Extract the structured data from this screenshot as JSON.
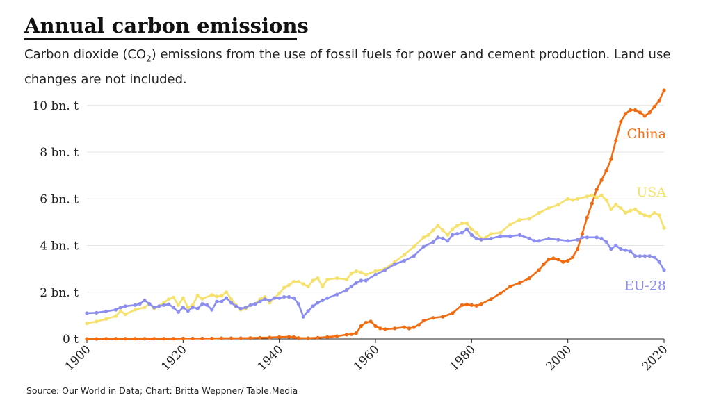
{
  "title": "Annual carbon emissions",
  "subtitle": {
    "before": "Carbon dioxide (CO",
    "sub": "2",
    "after": ") emissions from the use of fossil fuels for power and cement production. Land use changes are not included."
  },
  "source": "Source: Our World in Data; Chart: Britta Weppner/ Table.Media",
  "chart_data": {
    "type": "line",
    "xlim": [
      1900,
      2020
    ],
    "ylim": [
      0,
      10.5
    ],
    "x_ticks": [
      1900,
      1920,
      1940,
      1960,
      1980,
      2000,
      2020
    ],
    "y_ticks": [
      {
        "value": 0,
        "label": "0 t"
      },
      {
        "value": 2,
        "label": "2 bn. t"
      },
      {
        "value": 4,
        "label": "4 bn. t"
      },
      {
        "value": 6,
        "label": "6 bn. t"
      },
      {
        "value": 8,
        "label": "8 bn. t"
      },
      {
        "value": 10,
        "label": "10 bn. t"
      }
    ],
    "grid": "horizontal",
    "legend": "direct labels at line ends",
    "series": [
      {
        "name": "China",
        "color": "#f26b0f",
        "label_anchor_value": 8.8,
        "points": [
          [
            1900,
            0.0
          ],
          [
            1902,
            0.0
          ],
          [
            1904,
            0.01
          ],
          [
            1906,
            0.01
          ],
          [
            1908,
            0.01
          ],
          [
            1910,
            0.01
          ],
          [
            1912,
            0.01
          ],
          [
            1914,
            0.01
          ],
          [
            1916,
            0.01
          ],
          [
            1918,
            0.01
          ],
          [
            1920,
            0.02
          ],
          [
            1922,
            0.02
          ],
          [
            1924,
            0.02
          ],
          [
            1926,
            0.02
          ],
          [
            1928,
            0.03
          ],
          [
            1930,
            0.03
          ],
          [
            1932,
            0.03
          ],
          [
            1934,
            0.04
          ],
          [
            1936,
            0.05
          ],
          [
            1938,
            0.06
          ],
          [
            1940,
            0.08
          ],
          [
            1942,
            0.09
          ],
          [
            1943,
            0.08
          ],
          [
            1944,
            0.04
          ],
          [
            1946,
            0.03
          ],
          [
            1948,
            0.05
          ],
          [
            1950,
            0.08
          ],
          [
            1952,
            0.12
          ],
          [
            1954,
            0.18
          ],
          [
            1955,
            0.2
          ],
          [
            1956,
            0.25
          ],
          [
            1957,
            0.55
          ],
          [
            1958,
            0.7
          ],
          [
            1959,
            0.75
          ],
          [
            1960,
            0.55
          ],
          [
            1961,
            0.45
          ],
          [
            1962,
            0.42
          ],
          [
            1964,
            0.45
          ],
          [
            1966,
            0.5
          ],
          [
            1967,
            0.45
          ],
          [
            1968,
            0.5
          ],
          [
            1969,
            0.6
          ],
          [
            1970,
            0.78
          ],
          [
            1972,
            0.9
          ],
          [
            1974,
            0.95
          ],
          [
            1976,
            1.1
          ],
          [
            1978,
            1.45
          ],
          [
            1979,
            1.48
          ],
          [
            1980,
            1.45
          ],
          [
            1981,
            1.42
          ],
          [
            1982,
            1.5
          ],
          [
            1984,
            1.7
          ],
          [
            1986,
            1.95
          ],
          [
            1988,
            2.25
          ],
          [
            1990,
            2.4
          ],
          [
            1992,
            2.6
          ],
          [
            1994,
            2.95
          ],
          [
            1995,
            3.2
          ],
          [
            1996,
            3.4
          ],
          [
            1997,
            3.45
          ],
          [
            1998,
            3.4
          ],
          [
            1999,
            3.3
          ],
          [
            2000,
            3.35
          ],
          [
            2001,
            3.5
          ],
          [
            2002,
            3.85
          ],
          [
            2003,
            4.5
          ],
          [
            2004,
            5.2
          ],
          [
            2005,
            5.8
          ],
          [
            2006,
            6.4
          ],
          [
            2007,
            6.8
          ],
          [
            2008,
            7.2
          ],
          [
            2009,
            7.7
          ],
          [
            2010,
            8.5
          ],
          [
            2011,
            9.3
          ],
          [
            2012,
            9.65
          ],
          [
            2013,
            9.8
          ],
          [
            2014,
            9.8
          ],
          [
            2015,
            9.7
          ],
          [
            2016,
            9.55
          ],
          [
            2017,
            9.7
          ],
          [
            2018,
            9.95
          ],
          [
            2019,
            10.2
          ],
          [
            2020,
            10.65
          ]
        ]
      },
      {
        "name": "USA",
        "color": "#f5e16b",
        "label_anchor_value": 6.3,
        "points": [
          [
            1900,
            0.66
          ],
          [
            1902,
            0.75
          ],
          [
            1904,
            0.85
          ],
          [
            1906,
            0.98
          ],
          [
            1907,
            1.2
          ],
          [
            1908,
            1.05
          ],
          [
            1910,
            1.25
          ],
          [
            1912,
            1.35
          ],
          [
            1913,
            1.5
          ],
          [
            1914,
            1.3
          ],
          [
            1916,
            1.55
          ],
          [
            1917,
            1.7
          ],
          [
            1918,
            1.78
          ],
          [
            1919,
            1.45
          ],
          [
            1920,
            1.75
          ],
          [
            1921,
            1.35
          ],
          [
            1922,
            1.45
          ],
          [
            1923,
            1.85
          ],
          [
            1924,
            1.72
          ],
          [
            1926,
            1.88
          ],
          [
            1927,
            1.82
          ],
          [
            1928,
            1.85
          ],
          [
            1929,
            2.0
          ],
          [
            1930,
            1.7
          ],
          [
            1931,
            1.45
          ],
          [
            1932,
            1.25
          ],
          [
            1933,
            1.3
          ],
          [
            1934,
            1.45
          ],
          [
            1935,
            1.5
          ],
          [
            1936,
            1.7
          ],
          [
            1937,
            1.8
          ],
          [
            1938,
            1.55
          ],
          [
            1939,
            1.75
          ],
          [
            1940,
            1.95
          ],
          [
            1941,
            2.2
          ],
          [
            1942,
            2.3
          ],
          [
            1943,
            2.45
          ],
          [
            1944,
            2.45
          ],
          [
            1945,
            2.35
          ],
          [
            1946,
            2.25
          ],
          [
            1947,
            2.5
          ],
          [
            1948,
            2.6
          ],
          [
            1949,
            2.25
          ],
          [
            1950,
            2.55
          ],
          [
            1952,
            2.6
          ],
          [
            1954,
            2.55
          ],
          [
            1955,
            2.8
          ],
          [
            1956,
            2.9
          ],
          [
            1957,
            2.85
          ],
          [
            1958,
            2.75
          ],
          [
            1960,
            2.9
          ],
          [
            1962,
            3.0
          ],
          [
            1964,
            3.3
          ],
          [
            1966,
            3.6
          ],
          [
            1968,
            3.95
          ],
          [
            1970,
            4.35
          ],
          [
            1971,
            4.45
          ],
          [
            1972,
            4.65
          ],
          [
            1973,
            4.85
          ],
          [
            1974,
            4.65
          ],
          [
            1975,
            4.45
          ],
          [
            1976,
            4.7
          ],
          [
            1977,
            4.85
          ],
          [
            1978,
            4.95
          ],
          [
            1979,
            4.95
          ],
          [
            1980,
            4.7
          ],
          [
            1981,
            4.55
          ],
          [
            1982,
            4.3
          ],
          [
            1983,
            4.35
          ],
          [
            1984,
            4.5
          ],
          [
            1986,
            4.55
          ],
          [
            1988,
            4.9
          ],
          [
            1990,
            5.1
          ],
          [
            1992,
            5.15
          ],
          [
            1994,
            5.4
          ],
          [
            1996,
            5.6
          ],
          [
            1998,
            5.75
          ],
          [
            2000,
            6.0
          ],
          [
            2001,
            5.95
          ],
          [
            2002,
            6.0
          ],
          [
            2004,
            6.1
          ],
          [
            2005,
            6.15
          ],
          [
            2006,
            6.05
          ],
          [
            2007,
            6.15
          ],
          [
            2008,
            5.95
          ],
          [
            2009,
            5.55
          ],
          [
            2010,
            5.75
          ],
          [
            2011,
            5.6
          ],
          [
            2012,
            5.4
          ],
          [
            2013,
            5.5
          ],
          [
            2014,
            5.55
          ],
          [
            2015,
            5.4
          ],
          [
            2016,
            5.3
          ],
          [
            2017,
            5.25
          ],
          [
            2018,
            5.4
          ],
          [
            2019,
            5.3
          ],
          [
            2020,
            4.75
          ]
        ]
      },
      {
        "name": "EU-28",
        "color": "#8c8ef0",
        "label_anchor_value": 2.3,
        "points": [
          [
            1900,
            1.1
          ],
          [
            1902,
            1.12
          ],
          [
            1904,
            1.18
          ],
          [
            1906,
            1.25
          ],
          [
            1907,
            1.35
          ],
          [
            1908,
            1.4
          ],
          [
            1910,
            1.45
          ],
          [
            1911,
            1.5
          ],
          [
            1912,
            1.65
          ],
          [
            1913,
            1.5
          ],
          [
            1914,
            1.35
          ],
          [
            1915,
            1.4
          ],
          [
            1916,
            1.45
          ],
          [
            1917,
            1.48
          ],
          [
            1918,
            1.35
          ],
          [
            1919,
            1.15
          ],
          [
            1920,
            1.35
          ],
          [
            1921,
            1.2
          ],
          [
            1922,
            1.35
          ],
          [
            1923,
            1.3
          ],
          [
            1924,
            1.5
          ],
          [
            1925,
            1.45
          ],
          [
            1926,
            1.25
          ],
          [
            1927,
            1.6
          ],
          [
            1928,
            1.6
          ],
          [
            1929,
            1.75
          ],
          [
            1930,
            1.55
          ],
          [
            1931,
            1.4
          ],
          [
            1932,
            1.3
          ],
          [
            1933,
            1.35
          ],
          [
            1934,
            1.45
          ],
          [
            1935,
            1.5
          ],
          [
            1936,
            1.6
          ],
          [
            1937,
            1.7
          ],
          [
            1938,
            1.65
          ],
          [
            1939,
            1.75
          ],
          [
            1940,
            1.75
          ],
          [
            1941,
            1.8
          ],
          [
            1942,
            1.8
          ],
          [
            1943,
            1.75
          ],
          [
            1944,
            1.5
          ],
          [
            1945,
            0.95
          ],
          [
            1946,
            1.2
          ],
          [
            1947,
            1.4
          ],
          [
            1948,
            1.55
          ],
          [
            1949,
            1.65
          ],
          [
            1950,
            1.75
          ],
          [
            1952,
            1.9
          ],
          [
            1954,
            2.1
          ],
          [
            1955,
            2.25
          ],
          [
            1956,
            2.4
          ],
          [
            1957,
            2.5
          ],
          [
            1958,
            2.5
          ],
          [
            1960,
            2.75
          ],
          [
            1962,
            2.95
          ],
          [
            1964,
            3.2
          ],
          [
            1966,
            3.35
          ],
          [
            1968,
            3.55
          ],
          [
            1970,
            3.95
          ],
          [
            1972,
            4.15
          ],
          [
            1973,
            4.35
          ],
          [
            1974,
            4.3
          ],
          [
            1975,
            4.2
          ],
          [
            1976,
            4.45
          ],
          [
            1977,
            4.5
          ],
          [
            1978,
            4.55
          ],
          [
            1979,
            4.7
          ],
          [
            1980,
            4.45
          ],
          [
            1981,
            4.3
          ],
          [
            1982,
            4.25
          ],
          [
            1984,
            4.3
          ],
          [
            1986,
            4.4
          ],
          [
            1988,
            4.4
          ],
          [
            1990,
            4.45
          ],
          [
            1992,
            4.3
          ],
          [
            1993,
            4.2
          ],
          [
            1994,
            4.2
          ],
          [
            1996,
            4.3
          ],
          [
            1998,
            4.25
          ],
          [
            2000,
            4.2
          ],
          [
            2002,
            4.25
          ],
          [
            2003,
            4.35
          ],
          [
            2004,
            4.35
          ],
          [
            2006,
            4.35
          ],
          [
            2007,
            4.3
          ],
          [
            2008,
            4.15
          ],
          [
            2009,
            3.85
          ],
          [
            2010,
            4.0
          ],
          [
            2011,
            3.85
          ],
          [
            2012,
            3.8
          ],
          [
            2013,
            3.75
          ],
          [
            2014,
            3.55
          ],
          [
            2015,
            3.55
          ],
          [
            2016,
            3.55
          ],
          [
            2017,
            3.55
          ],
          [
            2018,
            3.5
          ],
          [
            2019,
            3.3
          ],
          [
            2020,
            2.95
          ]
        ]
      }
    ]
  }
}
